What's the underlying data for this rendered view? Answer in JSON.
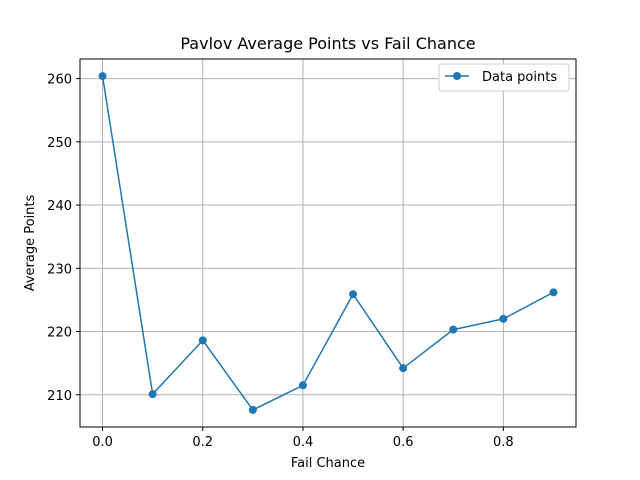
{
  "chart_data": {
    "type": "line",
    "title": "Pavlov Average Points vs Fail Chance",
    "xlabel": "Fail Chance",
    "ylabel": "Average Points",
    "xlim": [
      -0.045,
      0.945
    ],
    "ylim": [
      204.9,
      263.1
    ],
    "xticks": [
      0.0,
      0.2,
      0.4,
      0.6,
      0.8
    ],
    "xtick_labels": [
      "0.0",
      "0.2",
      "0.4",
      "0.6",
      "0.8"
    ],
    "yticks": [
      210,
      220,
      230,
      240,
      250,
      260
    ],
    "ytick_labels": [
      "210",
      "220",
      "230",
      "240",
      "250",
      "260"
    ],
    "grid": true,
    "legend_position": "top-right",
    "series": [
      {
        "name": "Data points",
        "color": "#1f77b4",
        "marker": "circle",
        "x": [
          0.0,
          0.1,
          0.2,
          0.3,
          0.4,
          0.5,
          0.6,
          0.7,
          0.8,
          0.9
        ],
        "y": [
          260.4,
          210.1,
          218.6,
          207.6,
          211.5,
          225.9,
          214.2,
          220.3,
          222.0,
          226.2
        ]
      }
    ]
  }
}
